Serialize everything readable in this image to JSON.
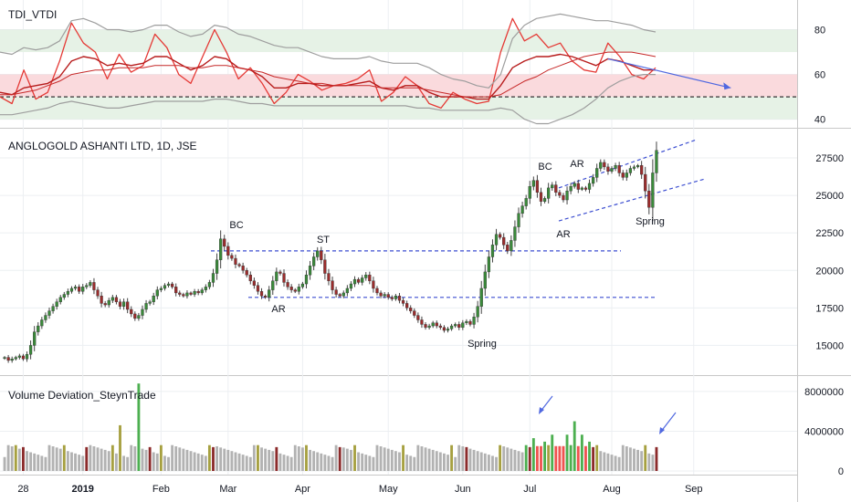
{
  "colors": {
    "up": "#26a69a",
    "down": "#ef5350",
    "upBody": "#3a8a3a",
    "downBody": "#9b2c2c",
    "volGray": "#b2b2b2",
    "volGreen": "#4caf50",
    "volRed": "#ef5350",
    "volDarkRed": "#8b2a2a",
    "volOlive": "#a6a040",
    "band": "#9e9e9e",
    "tdiRed": "#e53935",
    "tdiDark": "#b71c1c",
    "zoneGreen": "#e6f2e6",
    "zonePink": "#fadadd",
    "dashBlue": "#3d4fd1",
    "arrowBlue": "#5068e0"
  },
  "chart_data": [
    {
      "type": "line",
      "title": "TDI_VTDI",
      "yticks": [
        40,
        60,
        80
      ],
      "ylim": [
        37,
        90
      ],
      "zones": [
        {
          "from": 70,
          "to": 80,
          "color": "green"
        },
        {
          "from": 50,
          "to": 60,
          "color": "red"
        },
        {
          "from": 40,
          "to": 50,
          "color": "green"
        }
      ],
      "reference_line": 50,
      "series": [
        {
          "role": "price-line",
          "values": [
            50,
            47,
            62,
            49,
            52,
            66,
            83,
            74,
            70,
            58,
            69,
            61,
            64,
            78,
            72,
            60,
            56,
            68,
            80,
            70,
            58,
            63,
            56,
            47,
            52,
            60,
            57,
            53,
            55,
            56,
            58,
            62,
            48,
            52,
            59,
            55,
            47,
            45,
            52,
            49,
            47,
            48,
            70,
            85,
            75,
            78,
            72,
            74,
            66,
            62,
            61,
            74,
            68,
            60,
            58,
            63
          ]
        },
        {
          "role": "signal",
          "values": [
            52,
            51,
            54,
            55,
            56,
            59,
            66,
            68,
            67,
            64,
            65,
            64,
            65,
            68,
            68,
            65,
            62,
            64,
            68,
            67,
            63,
            62,
            59,
            54,
            54,
            56,
            56,
            55,
            55,
            55,
            56,
            57,
            54,
            53,
            55,
            55,
            52,
            50,
            50,
            50,
            49,
            49,
            55,
            63,
            66,
            68,
            68,
            69,
            68,
            66,
            64,
            67,
            66,
            64,
            62,
            62
          ]
        },
        {
          "role": "middle",
          "values": [
            51,
            51,
            52,
            53,
            55,
            57,
            60,
            61,
            62,
            62,
            63,
            63,
            63,
            64,
            64,
            64,
            63,
            63,
            64,
            64,
            63,
            62,
            61,
            59,
            58,
            57,
            56,
            56,
            55,
            55,
            55,
            55,
            54,
            54,
            54,
            54,
            53,
            52,
            51,
            50,
            50,
            50,
            51,
            54,
            57,
            59,
            62,
            64,
            66,
            68,
            69,
            70,
            70,
            70,
            69,
            68
          ]
        },
        {
          "role": "upper-band",
          "values": [
            70,
            69,
            72,
            71,
            72,
            75,
            84,
            85,
            83,
            80,
            80,
            79,
            80,
            82,
            82,
            79,
            77,
            78,
            82,
            81,
            78,
            77,
            75,
            73,
            72,
            72,
            70,
            68,
            67,
            67,
            67,
            68,
            66,
            65,
            65,
            65,
            63,
            60,
            58,
            57,
            55,
            54,
            60,
            76,
            82,
            85,
            86,
            87,
            86,
            85,
            84,
            84,
            83,
            82,
            80,
            79
          ]
        },
        {
          "role": "lower-band",
          "values": [
            42,
            42,
            43,
            44,
            45,
            47,
            48,
            47,
            46,
            45,
            45,
            46,
            47,
            48,
            48,
            48,
            48,
            48,
            49,
            49,
            48,
            47,
            47,
            46,
            46,
            46,
            46,
            46,
            46,
            46,
            46,
            46,
            46,
            46,
            46,
            45,
            45,
            44,
            44,
            44,
            44,
            44,
            45,
            44,
            40,
            38,
            38,
            40,
            42,
            45,
            49,
            54,
            57,
            59,
            60,
            60
          ]
        }
      ],
      "trend_arrow": {
        "from": [
          51,
          67
        ],
        "to": [
          61,
          54
        ]
      }
    },
    {
      "type": "candlestick",
      "title": "ANGLOGOLD ASHANTI LTD, 1D, JSE",
      "yticks": [
        15000,
        17500,
        20000,
        22500,
        25000,
        27500
      ],
      "ylim": [
        13200,
        28900
      ],
      "dates": [
        "28",
        "2019",
        "Feb",
        "Mar",
        "Apr",
        "May",
        "Jun",
        "Jul",
        "Aug",
        "Sep"
      ],
      "closes": [
        14200,
        14000,
        14100,
        14200,
        14300,
        14100,
        14400,
        15000,
        15900,
        16300,
        16700,
        17000,
        17300,
        17600,
        17900,
        18200,
        18400,
        18600,
        18800,
        18900,
        18600,
        18900,
        19000,
        19200,
        18700,
        18300,
        17800,
        17700,
        18000,
        18200,
        17900,
        17600,
        17900,
        17400,
        17100,
        16800,
        17000,
        17400,
        17800,
        17900,
        18300,
        18700,
        18800,
        19000,
        19100,
        18900,
        18500,
        18400,
        18300,
        18500,
        18400,
        18600,
        18500,
        18700,
        18900,
        19200,
        19800,
        20700,
        22100,
        21600,
        21000,
        20800,
        20400,
        20300,
        20000,
        19700,
        19300,
        19000,
        18600,
        18300,
        18200,
        18700,
        19300,
        19900,
        19800,
        19200,
        18900,
        18700,
        18600,
        18900,
        19100,
        19700,
        20300,
        20900,
        21300,
        20700,
        19800,
        19300,
        18700,
        18400,
        18300,
        18500,
        18800,
        19100,
        19400,
        19200,
        19500,
        19700,
        19300,
        18800,
        18500,
        18300,
        18400,
        18200,
        18100,
        18300,
        18000,
        17800,
        17500,
        17300,
        17000,
        16700,
        16400,
        16200,
        16300,
        16500,
        16300,
        16200,
        16000,
        16100,
        16300,
        16400,
        16200,
        16500,
        16600,
        16400,
        16900,
        17600,
        18800,
        19900,
        20900,
        21700,
        22400,
        22200,
        21700,
        21300,
        22000,
        22900,
        23800,
        24300,
        24800,
        25600,
        26000,
        25200,
        24600,
        24800,
        25500,
        25700,
        25200,
        25000,
        24700,
        25300,
        25600,
        25800,
        25400,
        25500,
        25400,
        25800,
        26200,
        26800,
        27200,
        26900,
        26600,
        26800,
        27000,
        26500,
        26200,
        26500,
        26800,
        26900,
        27000,
        26400,
        25300,
        24200,
        26500,
        28000
      ],
      "levels": [
        21300,
        18200
      ],
      "annotations": [
        "BC",
        "ST",
        "AR",
        "Spring",
        "BC",
        "AR",
        "AR",
        "Spring"
      ]
    },
    {
      "type": "bar",
      "title": "Volume Deviation_SteynTrade",
      "yticks": [
        "0",
        "4000000",
        "8000000"
      ],
      "ylim": [
        0,
        9000000
      ]
    }
  ]
}
